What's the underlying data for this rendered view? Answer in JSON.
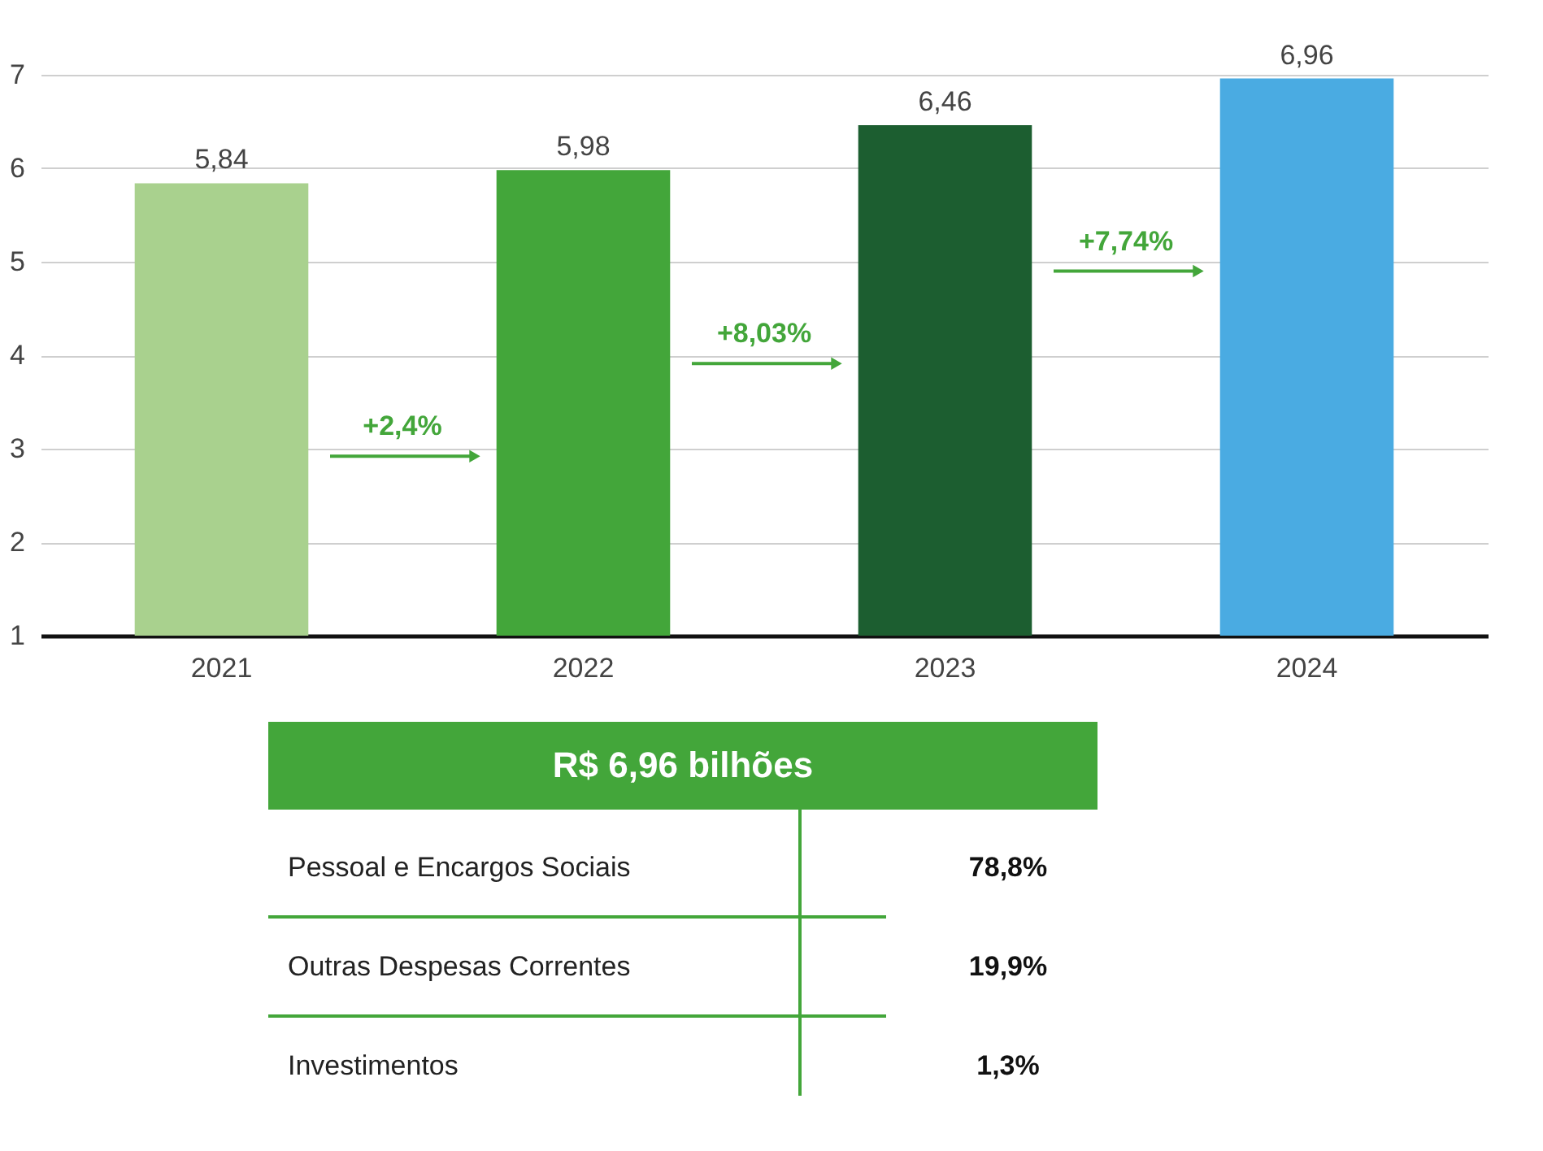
{
  "chart_data": [
    {
      "type": "bar",
      "categories": [
        "2021",
        "2022",
        "2023",
        "2024"
      ],
      "values": [
        5.84,
        5.98,
        6.46,
        6.96
      ],
      "colors": [
        "#a9d18e",
        "#43a63a",
        "#1c5e30",
        "#4aabe2"
      ],
      "value_labels": [
        "5,84",
        "5,98",
        "6,46",
        "6,96"
      ],
      "annotations": [
        "+2,4%",
        "+8,03%",
        "+7,74%"
      ],
      "ylim": [
        1,
        7
      ],
      "yticks": [
        1,
        2,
        3,
        4,
        5,
        6,
        7
      ],
      "grid": "y"
    },
    {
      "type": "other",
      "title": "R$ 6,96 bilhões",
      "categories": [
        "Pessoal e Encargos Sociais",
        "Outras Despesas Correntes",
        "Investimentos"
      ],
      "values": [
        78.8,
        19.9,
        1.3
      ],
      "value_labels": [
        "78,8%",
        "19,9%",
        "1,3%"
      ]
    }
  ]
}
